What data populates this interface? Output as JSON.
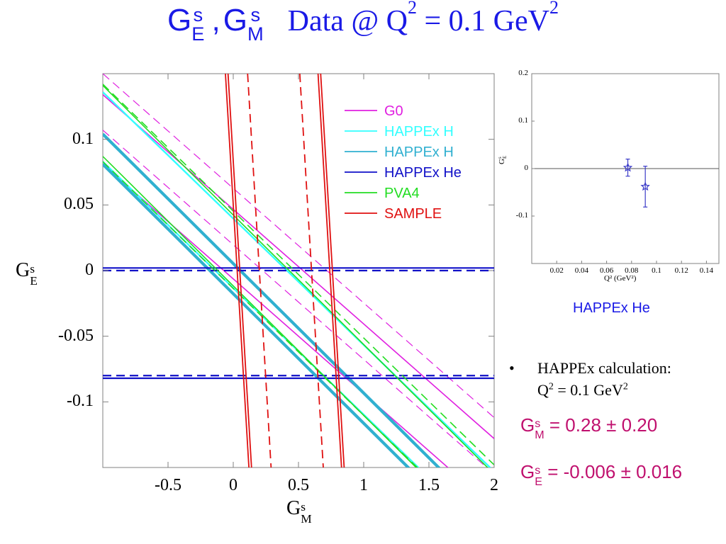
{
  "title": {
    "ge": "G",
    "ge_sup": "s",
    "ge_sub": "E",
    "sep": ",",
    "gm": "G",
    "gm_sup": "s",
    "gm_sub": "M",
    "rest": "Data @ Q",
    "q_exp": "2",
    "eq": "= 0.1 GeV",
    "gev_exp": "2"
  },
  "chart_data": [
    {
      "type": "line",
      "title": "",
      "xlabel": "G^s_M",
      "ylabel": "G^s_E",
      "xlim": [
        -1.0,
        2.0
      ],
      "ylim": [
        -0.15,
        0.15
      ],
      "x_ticks": [
        "-0.5",
        "0",
        "0.5",
        "1",
        "1.5",
        "2"
      ],
      "y_ticks": [
        "0.1",
        "0.05",
        "0",
        "-0.05",
        "-0.1"
      ],
      "legend_position": "top-right",
      "legend": [
        {
          "name": "G0",
          "color": "#e020e0"
        },
        {
          "name": "HAPPEx H",
          "color": "#33ffff"
        },
        {
          "name": "HAPPEx H",
          "color": "#30b0d0"
        },
        {
          "name": "HAPPEx He",
          "color": "#1010c8"
        },
        {
          "name": "PVA4",
          "color": "#22dd22"
        },
        {
          "name": "SAMPLE",
          "color": "#e01010"
        }
      ],
      "series": [
        {
          "group": "G0",
          "color": "#e020e0",
          "style": "solid",
          "width": 1.6,
          "points": [
            [
              -1.0,
              0.134
            ],
            [
              2.0,
              -0.128
            ]
          ]
        },
        {
          "group": "G0",
          "color": "#e020e0",
          "style": "solid",
          "width": 1.6,
          "points": [
            [
              -1.0,
              0.081
            ],
            [
              2.0,
              -0.181
            ]
          ]
        },
        {
          "group": "G0",
          "color": "#e020e0",
          "style": "dashed",
          "width": 1.2,
          "points": [
            [
              -1.0,
              0.15
            ],
            [
              2.0,
              -0.112
            ]
          ]
        },
        {
          "group": "G0",
          "color": "#e020e0",
          "style": "dashed",
          "width": 1.2,
          "points": [
            [
              -1.0,
              0.107
            ],
            [
              2.0,
              -0.155
            ]
          ]
        },
        {
          "group": "HAPPEx H 1",
          "color": "#33ffff",
          "style": "solid",
          "width": 2.4,
          "points": [
            [
              -1.0,
              0.136
            ],
            [
              2.0,
              -0.153
            ]
          ]
        },
        {
          "group": "HAPPEx H 1",
          "color": "#33ffff",
          "style": "solid",
          "width": 2.4,
          "points": [
            [
              -1.0,
              0.083
            ],
            [
              2.0,
              -0.206
            ]
          ]
        },
        {
          "group": "HAPPEx H 2",
          "color": "#30b0d0",
          "style": "solid",
          "width": 4.2,
          "points": [
            [
              -1.0,
              0.104
            ],
            [
              2.0,
              -0.192
            ]
          ]
        },
        {
          "group": "HAPPEx H 2",
          "color": "#30b0d0",
          "style": "solid",
          "width": 4.2,
          "points": [
            [
              -1.0,
              0.081
            ],
            [
              2.0,
              -0.215
            ]
          ]
        },
        {
          "group": "HAPPEx He",
          "color": "#1010c8",
          "style": "solid",
          "width": 2.2,
          "points": [
            [
              -1.0,
              0.002
            ],
            [
              2.0,
              0.002
            ]
          ]
        },
        {
          "group": "HAPPEx He",
          "color": "#1010c8",
          "style": "dashed",
          "width": 2.2,
          "points": [
            [
              -1.0,
              0.0
            ],
            [
              2.0,
              0.0
            ]
          ]
        },
        {
          "group": "HAPPEx He",
          "color": "#1010c8",
          "style": "solid",
          "width": 2.2,
          "points": [
            [
              -1.0,
              -0.082
            ],
            [
              2.0,
              -0.082
            ]
          ]
        },
        {
          "group": "HAPPEx He",
          "color": "#1010c8",
          "style": "dashed",
          "width": 2.2,
          "points": [
            [
              -1.0,
              -0.08
            ],
            [
              2.0,
              -0.08
            ]
          ]
        },
        {
          "group": "PVA4",
          "color": "#22dd22",
          "style": "solid",
          "width": 1.6,
          "points": [
            [
              -1.0,
              0.141
            ],
            [
              2.0,
              -0.155
            ]
          ]
        },
        {
          "group": "PVA4",
          "color": "#22dd22",
          "style": "solid",
          "width": 1.6,
          "points": [
            [
              -1.0,
              0.087
            ],
            [
              2.0,
              -0.209
            ]
          ]
        },
        {
          "group": "PVA4",
          "color": "#22dd22",
          "style": "dashed",
          "width": 1.6,
          "points": [
            [
              -1.0,
              0.142
            ],
            [
              2.0,
              -0.148
            ]
          ]
        },
        {
          "group": "PVA4",
          "color": "#22dd22",
          "style": "dashed",
          "width": 1.6,
          "points": [
            [
              -1.0,
              0.083
            ],
            [
              2.0,
              -0.207
            ]
          ]
        },
        {
          "group": "SAMPLE",
          "color": "#e01010",
          "style": "solid",
          "width": 1.8,
          "points": [
            [
              -0.06,
              0.15
            ],
            [
              0.12,
              -0.15
            ]
          ]
        },
        {
          "group": "SAMPLE",
          "color": "#e01010",
          "style": "solid",
          "width": 1.8,
          "points": [
            [
              -0.04,
              0.15
            ],
            [
              0.14,
              -0.15
            ]
          ]
        },
        {
          "group": "SAMPLE",
          "color": "#e01010",
          "style": "dashed",
          "width": 1.8,
          "points": [
            [
              0.11,
              0.15
            ],
            [
              0.29,
              -0.15
            ]
          ]
        },
        {
          "group": "SAMPLE",
          "color": "#e01010",
          "style": "dashed",
          "width": 1.8,
          "points": [
            [
              0.51,
              0.15
            ],
            [
              0.69,
              -0.15
            ]
          ]
        },
        {
          "group": "SAMPLE",
          "color": "#e01010",
          "style": "solid",
          "width": 1.8,
          "points": [
            [
              0.65,
              0.15
            ],
            [
              0.83,
              -0.15
            ]
          ]
        },
        {
          "group": "SAMPLE",
          "color": "#e01010",
          "style": "solid",
          "width": 1.8,
          "points": [
            [
              0.67,
              0.15
            ],
            [
              0.85,
              -0.15
            ]
          ]
        }
      ]
    },
    {
      "type": "scatter",
      "title": "",
      "xlabel": "Q² (GeV²)",
      "ylabel": "G^s_E",
      "xlim": [
        0.0,
        0.15
      ],
      "ylim": [
        -0.2,
        0.2
      ],
      "x_ticks": [
        "0.02",
        "0.04",
        "0.06",
        "0.08",
        "0.1",
        "0.12",
        "0.14"
      ],
      "y_ticks": [
        "0.2",
        "0.1",
        "0",
        "-0.1"
      ],
      "reference_line": 0,
      "points": [
        {
          "x": 0.077,
          "y": 0.002,
          "err": 0.018,
          "marker": "star"
        },
        {
          "x": 0.091,
          "y": -0.038,
          "err": 0.043,
          "marker": "star"
        }
      ],
      "caption": "HAPPEx He"
    }
  ],
  "main_plot": {
    "xlabel": {
      "base": "G",
      "sup": "s",
      "sub": "M"
    },
    "ylabel": {
      "base": "G",
      "sup": "s",
      "sub": "E"
    },
    "x_tick_labels": [
      "-0.5",
      "0",
      "0.5",
      "1",
      "1.5",
      "2"
    ],
    "y_tick_labels": [
      "0.1",
      "0.05",
      "0",
      "-0.05",
      "-0.1"
    ]
  },
  "inset_plot": {
    "caption": "HAPPEx He",
    "x_tick_labels": [
      "0.02",
      "0.04",
      "0.06",
      "0.08",
      "0.1",
      "0.12",
      "0.14"
    ],
    "y_tick_labels": [
      "0.2",
      "0.1",
      "0",
      "-0.1"
    ],
    "xlabel": "Q² (GeV²)",
    "ylabel": {
      "base": "G",
      "sup": "s",
      "sub": "E"
    }
  },
  "notes": {
    "bullet_symbol": "•",
    "bullet_line1": "HAPPEx calculation:",
    "bullet_line2_pre": "Q",
    "bullet_line2_exp": "2",
    "bullet_line2_post": " = 0.1 GeV",
    "bullet_line2_exp2": "2"
  },
  "results": {
    "gm": {
      "base": "G",
      "sup": "s",
      "sub": "M",
      "value": "= 0.28 ± 0.20"
    },
    "ge": {
      "base": "G",
      "sup": "s",
      "sub": "E",
      "value": "= -0.006 ± 0.016"
    },
    "color": "#c0106e"
  }
}
